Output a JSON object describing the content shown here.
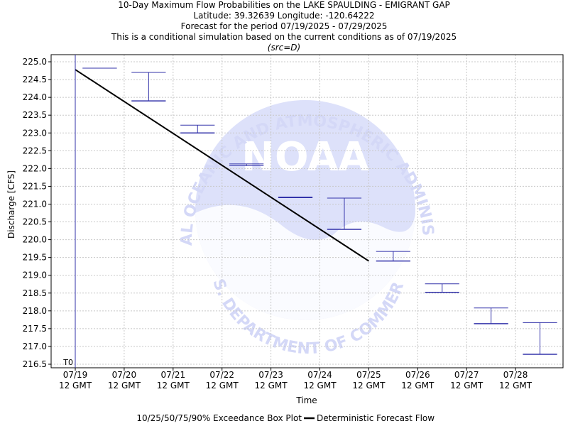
{
  "chart_data": {
    "type": "box",
    "title_lines": [
      "10-Day Maximum Flow Probabilities on the LAKE SPAULDING - EMIGRANT GAP",
      "Latitude: 39.32639 Longitude: -120.64222",
      "Forecast for the period 07/19/2025 - 07/29/2025",
      "This is a conditional simulation based on the current conditions as of 07/19/2025",
      "(src=D)"
    ],
    "xlabel": "Time",
    "ylabel": "Discharge [CFS]",
    "ylim": [
      216.4,
      225.2
    ],
    "yticks": [
      "225.0",
      "224.5",
      "224.0",
      "223.5",
      "223.0",
      "222.5",
      "222.0",
      "221.5",
      "221.0",
      "220.5",
      "220.0",
      "219.5",
      "219.0",
      "218.5",
      "218.0",
      "217.5",
      "217.0",
      "216.5"
    ],
    "xticks": [
      {
        "day": 0,
        "date": "07/19",
        "time": "12 GMT"
      },
      {
        "day": 1,
        "date": "07/20",
        "time": "12 GMT"
      },
      {
        "day": 2,
        "date": "07/21",
        "time": "12 GMT"
      },
      {
        "day": 3,
        "date": "07/22",
        "time": "12 GMT"
      },
      {
        "day": 4,
        "date": "07/23",
        "time": "12 GMT"
      },
      {
        "day": 5,
        "date": "07/24",
        "time": "12 GMT"
      },
      {
        "day": 6,
        "date": "07/25",
        "time": "12 GMT"
      },
      {
        "day": 7,
        "date": "07/26",
        "time": "12 GMT"
      },
      {
        "day": 8,
        "date": "07/27",
        "time": "12 GMT"
      },
      {
        "day": 9,
        "date": "07/28",
        "time": "12 GMT"
      }
    ],
    "t0_label": "T0",
    "boxes": [
      {
        "day_start": 0.15,
        "day_end": 0.85,
        "high": 224.82,
        "low": 224.82
      },
      {
        "day_start": 1.15,
        "day_end": 1.85,
        "high": 224.7,
        "low": 223.9
      },
      {
        "day_start": 2.15,
        "day_end": 2.85,
        "high": 223.22,
        "low": 223.0
      },
      {
        "day_start": 3.15,
        "day_end": 3.85,
        "high": 222.13,
        "low": 222.08
      },
      {
        "day_start": 4.15,
        "day_end": 4.85,
        "high": 221.2,
        "low": 221.18
      },
      {
        "day_start": 5.15,
        "day_end": 5.85,
        "high": 221.17,
        "low": 220.29
      },
      {
        "day_start": 6.15,
        "day_end": 6.85,
        "high": 219.67,
        "low": 219.4
      },
      {
        "day_start": 7.15,
        "day_end": 7.85,
        "high": 218.76,
        "low": 218.52
      },
      {
        "day_start": 8.15,
        "day_end": 8.85,
        "high": 218.08,
        "low": 217.64
      },
      {
        "day_start": 9.15,
        "day_end": 9.85,
        "high": 217.67,
        "low": 216.78
      }
    ],
    "deterministic": {
      "x": [
        0.0,
        6.0
      ],
      "y": [
        224.78,
        219.4
      ]
    },
    "legend": {
      "box_label": "10/25/50/75/90% Exceedance Box Plot",
      "line_label": "Deterministic Forecast Flow"
    },
    "watermark": {
      "logo_text": "NOAA",
      "arc_top": "NATIONAL OCEANIC AND ATMOSPHERIC ADMINISTRATION",
      "arc_bottom": "U.S. DEPARTMENT OF COMMERCE"
    },
    "colors": {
      "box": "#3333aa",
      "line": "#000000",
      "t0": "#3333aa",
      "grid": "#c8c8c8",
      "watermark": "#d4d8f7"
    },
    "grid": true
  }
}
